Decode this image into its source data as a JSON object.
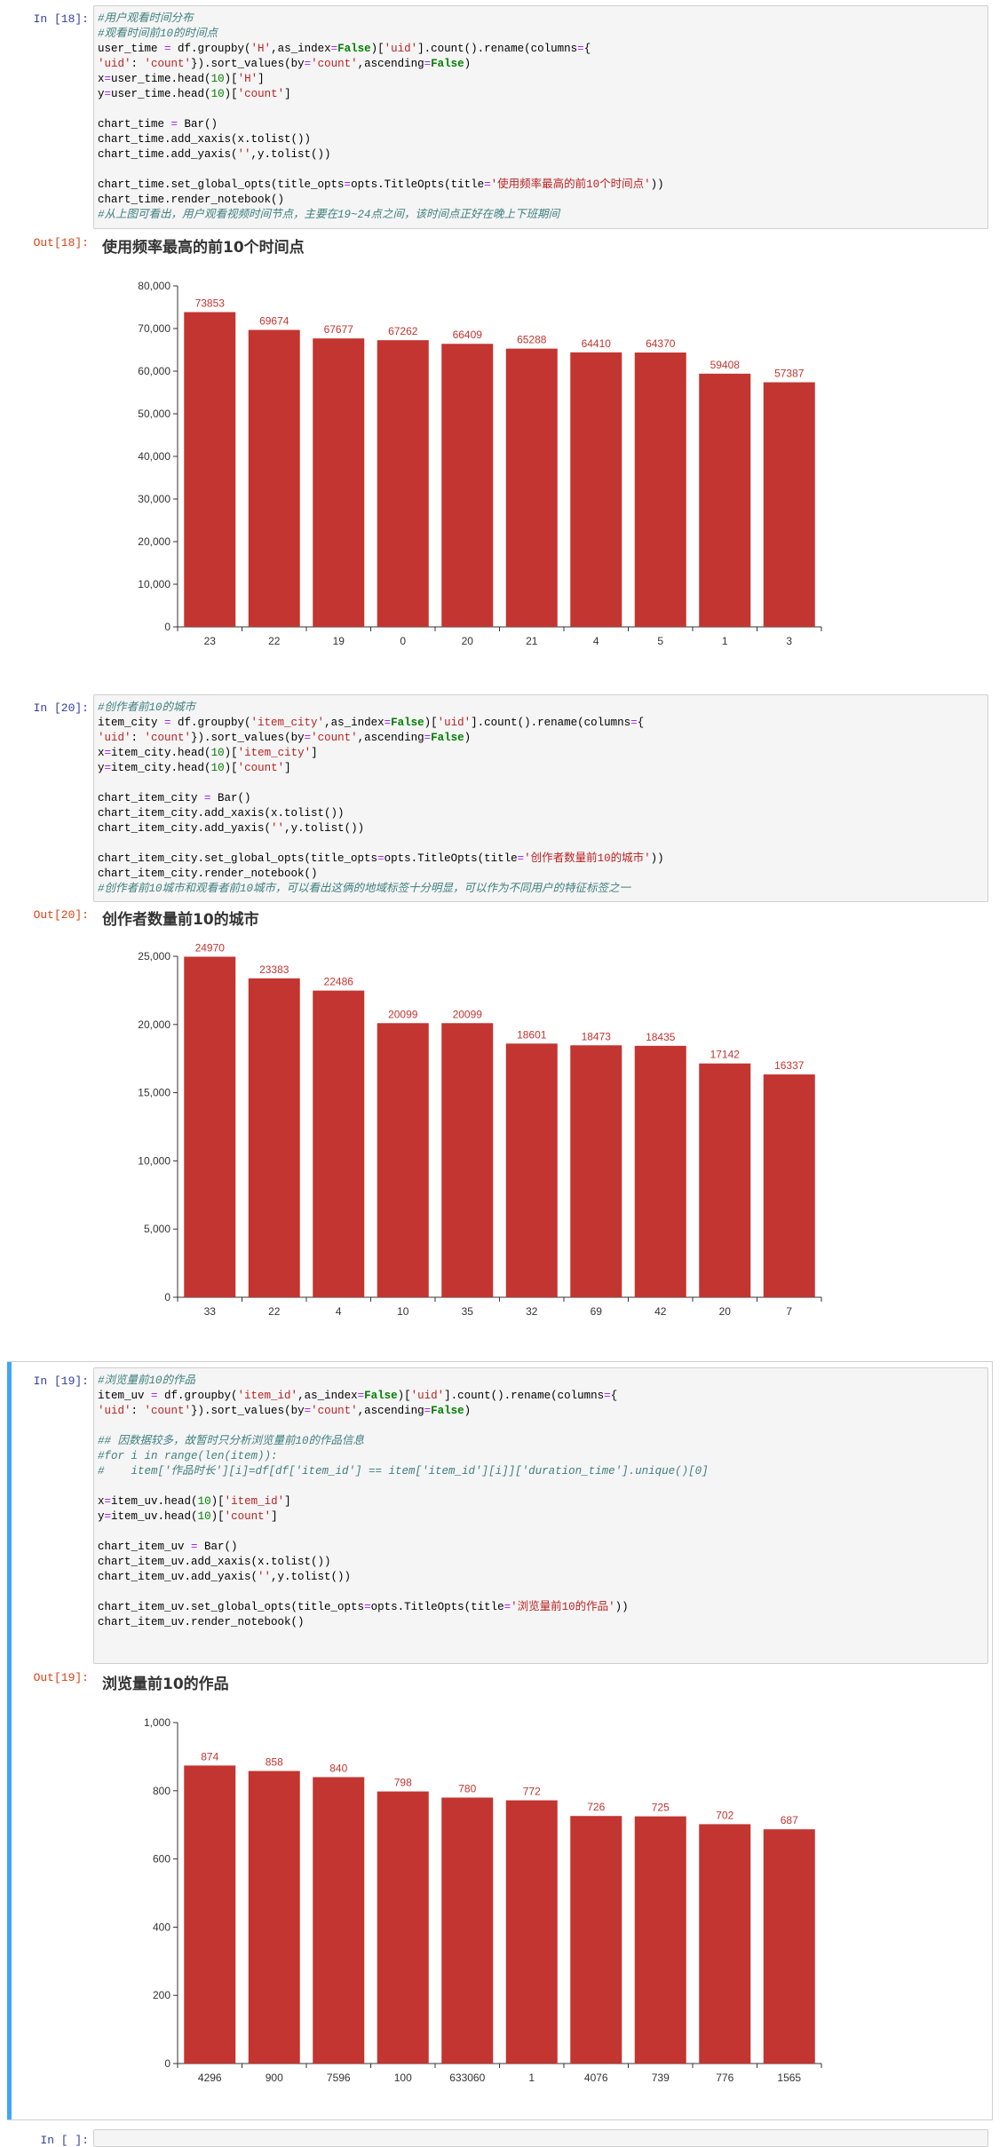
{
  "cells": [
    {
      "in_prompt": "In  [18]:",
      "out_prompt": "Out[18]:",
      "code": [
        [
          [
            "cmt",
            "#用户观看时间分布"
          ]
        ],
        [
          [
            "cmt",
            "#观看时间前10的时间点"
          ]
        ],
        [
          [
            "t",
            "user_time "
          ],
          [
            "op",
            "="
          ],
          [
            "t",
            " df.groupby("
          ],
          [
            "str",
            "'H'"
          ],
          [
            "t",
            ",as_index"
          ],
          [
            "op",
            "="
          ],
          [
            "kw",
            "False"
          ],
          [
            "t",
            ")["
          ],
          [
            "str",
            "'uid'"
          ],
          [
            "t",
            "].count().rename(columns"
          ],
          [
            "op",
            "="
          ],
          [
            "t",
            "{"
          ]
        ],
        [
          [
            "str",
            "'uid'"
          ],
          [
            "t",
            ": "
          ],
          [
            "str",
            "'count'"
          ],
          [
            "t",
            "}).sort_values(by"
          ],
          [
            "op",
            "="
          ],
          [
            "str",
            "'count'"
          ],
          [
            "t",
            ",ascending"
          ],
          [
            "op",
            "="
          ],
          [
            "kw",
            "False"
          ],
          [
            "t",
            ")"
          ]
        ],
        [
          [
            "t",
            "x"
          ],
          [
            "op",
            "="
          ],
          [
            "t",
            "user_time.head("
          ],
          [
            "num",
            "10"
          ],
          [
            "t",
            ")["
          ],
          [
            "str",
            "'H'"
          ],
          [
            "t",
            "]"
          ]
        ],
        [
          [
            "t",
            "y"
          ],
          [
            "op",
            "="
          ],
          [
            "t",
            "user_time.head("
          ],
          [
            "num",
            "10"
          ],
          [
            "t",
            ")["
          ],
          [
            "str",
            "'count'"
          ],
          [
            "t",
            "]"
          ]
        ],
        [],
        [
          [
            "t",
            "chart_time "
          ],
          [
            "op",
            "="
          ],
          [
            "t",
            " Bar()"
          ]
        ],
        [
          [
            "t",
            "chart_time.add_xaxis(x.tolist())"
          ]
        ],
        [
          [
            "t",
            "chart_time.add_yaxis("
          ],
          [
            "str",
            "''"
          ],
          [
            "t",
            ",y.tolist())"
          ]
        ],
        [],
        [
          [
            "t",
            "chart_time.set_global_opts(title_opts"
          ],
          [
            "op",
            "="
          ],
          [
            "t",
            "opts.TitleOpts(title"
          ],
          [
            "op",
            "="
          ],
          [
            "str",
            "'使用频率最高的前10个时间点'"
          ],
          [
            "t",
            "))"
          ]
        ],
        [
          [
            "t",
            "chart_time.render_notebook()"
          ]
        ],
        [
          [
            "cmt",
            "#从上图可看出，用户观看视频时间节点，主要在19~24点之间，该时间点正好在晚上下班期间"
          ]
        ]
      ],
      "chart_data": {
        "type": "bar",
        "title": "使用频率最高的前10个时间点",
        "categories": [
          "23",
          "22",
          "19",
          "0",
          "20",
          "21",
          "4",
          "5",
          "1",
          "3"
        ],
        "values": [
          73853,
          69674,
          67677,
          67262,
          66409,
          65288,
          64410,
          64370,
          59408,
          57387
        ],
        "ylim": [
          0,
          80000
        ],
        "yticks": [
          "0",
          "10,000",
          "20,000",
          "30,000",
          "40,000",
          "50,000",
          "60,000",
          "70,000",
          "80,000"
        ],
        "color": "#c23531"
      }
    },
    {
      "in_prompt": "In  [20]:",
      "out_prompt": "Out[20]:",
      "code": [
        [
          [
            "cmt",
            "#创作者前10的城市"
          ]
        ],
        [
          [
            "t",
            "item_city "
          ],
          [
            "op",
            "="
          ],
          [
            "t",
            " df.groupby("
          ],
          [
            "str",
            "'item_city'"
          ],
          [
            "t",
            ",as_index"
          ],
          [
            "op",
            "="
          ],
          [
            "kw",
            "False"
          ],
          [
            "t",
            ")["
          ],
          [
            "str",
            "'uid'"
          ],
          [
            "t",
            "].count().rename(columns"
          ],
          [
            "op",
            "="
          ],
          [
            "t",
            "{"
          ]
        ],
        [
          [
            "str",
            "'uid'"
          ],
          [
            "t",
            ": "
          ],
          [
            "str",
            "'count'"
          ],
          [
            "t",
            "}).sort_values(by"
          ],
          [
            "op",
            "="
          ],
          [
            "str",
            "'count'"
          ],
          [
            "t",
            ",ascending"
          ],
          [
            "op",
            "="
          ],
          [
            "kw",
            "False"
          ],
          [
            "t",
            ")"
          ]
        ],
        [
          [
            "t",
            "x"
          ],
          [
            "op",
            "="
          ],
          [
            "t",
            "item_city.head("
          ],
          [
            "num",
            "10"
          ],
          [
            "t",
            ")["
          ],
          [
            "str",
            "'item_city'"
          ],
          [
            "t",
            "]"
          ]
        ],
        [
          [
            "t",
            "y"
          ],
          [
            "op",
            "="
          ],
          [
            "t",
            "item_city.head("
          ],
          [
            "num",
            "10"
          ],
          [
            "t",
            ")["
          ],
          [
            "str",
            "'count'"
          ],
          [
            "t",
            "]"
          ]
        ],
        [],
        [
          [
            "t",
            "chart_item_city "
          ],
          [
            "op",
            "="
          ],
          [
            "t",
            " Bar()"
          ]
        ],
        [
          [
            "t",
            "chart_item_city.add_xaxis(x.tolist())"
          ]
        ],
        [
          [
            "t",
            "chart_item_city.add_yaxis("
          ],
          [
            "str",
            "''"
          ],
          [
            "t",
            ",y.tolist())"
          ]
        ],
        [],
        [
          [
            "t",
            "chart_item_city.set_global_opts(title_opts"
          ],
          [
            "op",
            "="
          ],
          [
            "t",
            "opts.TitleOpts(title"
          ],
          [
            "op",
            "="
          ],
          [
            "str",
            "'创作者数量前10的城市'"
          ],
          [
            "t",
            "))"
          ]
        ],
        [
          [
            "t",
            "chart_item_city.render_notebook()"
          ]
        ],
        [
          [
            "cmt",
            "#创作者前10城市和观看者前10城市，可以看出这俩的地域标签十分明显，可以作为不同用户的特征标签之一"
          ]
        ]
      ],
      "chart_data": {
        "type": "bar",
        "title": "创作者数量前10的城市",
        "categories": [
          "33",
          "22",
          "4",
          "10",
          "35",
          "32",
          "69",
          "42",
          "20",
          "7"
        ],
        "values": [
          24970,
          23383,
          22486,
          20099,
          20099,
          18601,
          18473,
          18435,
          17142,
          16337
        ],
        "ylim": [
          0,
          25000
        ],
        "yticks": [
          "0",
          "5,000",
          "10,000",
          "15,000",
          "20,000",
          "25,000"
        ],
        "color": "#c23531"
      }
    },
    {
      "in_prompt": "In  [19]:",
      "out_prompt": "Out[19]:",
      "code": [
        [
          [
            "cmt",
            "#浏览量前10的作品"
          ]
        ],
        [
          [
            "t",
            "item_uv "
          ],
          [
            "op",
            "="
          ],
          [
            "t",
            " df.groupby("
          ],
          [
            "str",
            "'item_id'"
          ],
          [
            "t",
            ",as_index"
          ],
          [
            "op",
            "="
          ],
          [
            "kw",
            "False"
          ],
          [
            "t",
            ")["
          ],
          [
            "str",
            "'uid'"
          ],
          [
            "t",
            "].count().rename(columns"
          ],
          [
            "op",
            "="
          ],
          [
            "t",
            "{"
          ]
        ],
        [
          [
            "str",
            "'uid'"
          ],
          [
            "t",
            ": "
          ],
          [
            "str",
            "'count'"
          ],
          [
            "t",
            "}).sort_values(by"
          ],
          [
            "op",
            "="
          ],
          [
            "str",
            "'count'"
          ],
          [
            "t",
            ",ascending"
          ],
          [
            "op",
            "="
          ],
          [
            "kw",
            "False"
          ],
          [
            "t",
            ")"
          ]
        ],
        [],
        [
          [
            "cmt",
            "## 因数据较多，故暂时只分析浏览量前10的作品信息"
          ]
        ],
        [
          [
            "cmt",
            "#for i in range(len(item)):"
          ]
        ],
        [
          [
            "cmt",
            "#    item['作品时长'][i]=df[df['item_id'] == item['item_id'][i]]['duration_time'].unique()[0]"
          ]
        ],
        [],
        [
          [
            "t",
            "x"
          ],
          [
            "op",
            "="
          ],
          [
            "t",
            "item_uv.head("
          ],
          [
            "num",
            "10"
          ],
          [
            "t",
            ")["
          ],
          [
            "str",
            "'item_id'"
          ],
          [
            "t",
            "]"
          ]
        ],
        [
          [
            "t",
            "y"
          ],
          [
            "op",
            "="
          ],
          [
            "t",
            "item_uv.head("
          ],
          [
            "num",
            "10"
          ],
          [
            "t",
            ")["
          ],
          [
            "str",
            "'count'"
          ],
          [
            "t",
            "]"
          ]
        ],
        [],
        [
          [
            "t",
            "chart_item_uv "
          ],
          [
            "op",
            "="
          ],
          [
            "t",
            " Bar()"
          ]
        ],
        [
          [
            "t",
            "chart_item_uv.add_xaxis(x.tolist())"
          ]
        ],
        [
          [
            "t",
            "chart_item_uv.add_yaxis("
          ],
          [
            "str",
            "''"
          ],
          [
            "t",
            ",y.tolist())"
          ]
        ],
        [],
        [
          [
            "t",
            "chart_item_uv.set_global_opts(title_opts"
          ],
          [
            "op",
            "="
          ],
          [
            "t",
            "opts.TitleOpts(title"
          ],
          [
            "op",
            "="
          ],
          [
            "str",
            "'浏览量前10的作品'"
          ],
          [
            "t",
            "))"
          ]
        ],
        [
          [
            "t",
            "chart_item_uv.render_notebook()"
          ]
        ]
      ],
      "chart_data": {
        "type": "bar",
        "title": "浏览量前10的作品",
        "categories": [
          "4296",
          "900",
          "7596",
          "100",
          "633060",
          "1",
          "4076",
          "739",
          "776",
          "1565"
        ],
        "values": [
          874,
          858,
          840,
          798,
          780,
          772,
          726,
          725,
          702,
          687
        ],
        "ylim": [
          0,
          1000
        ],
        "yticks": [
          "0",
          "200",
          "400",
          "600",
          "800",
          "1,000"
        ],
        "color": "#c23531"
      }
    }
  ],
  "next_prompt": "In  [ ]:"
}
